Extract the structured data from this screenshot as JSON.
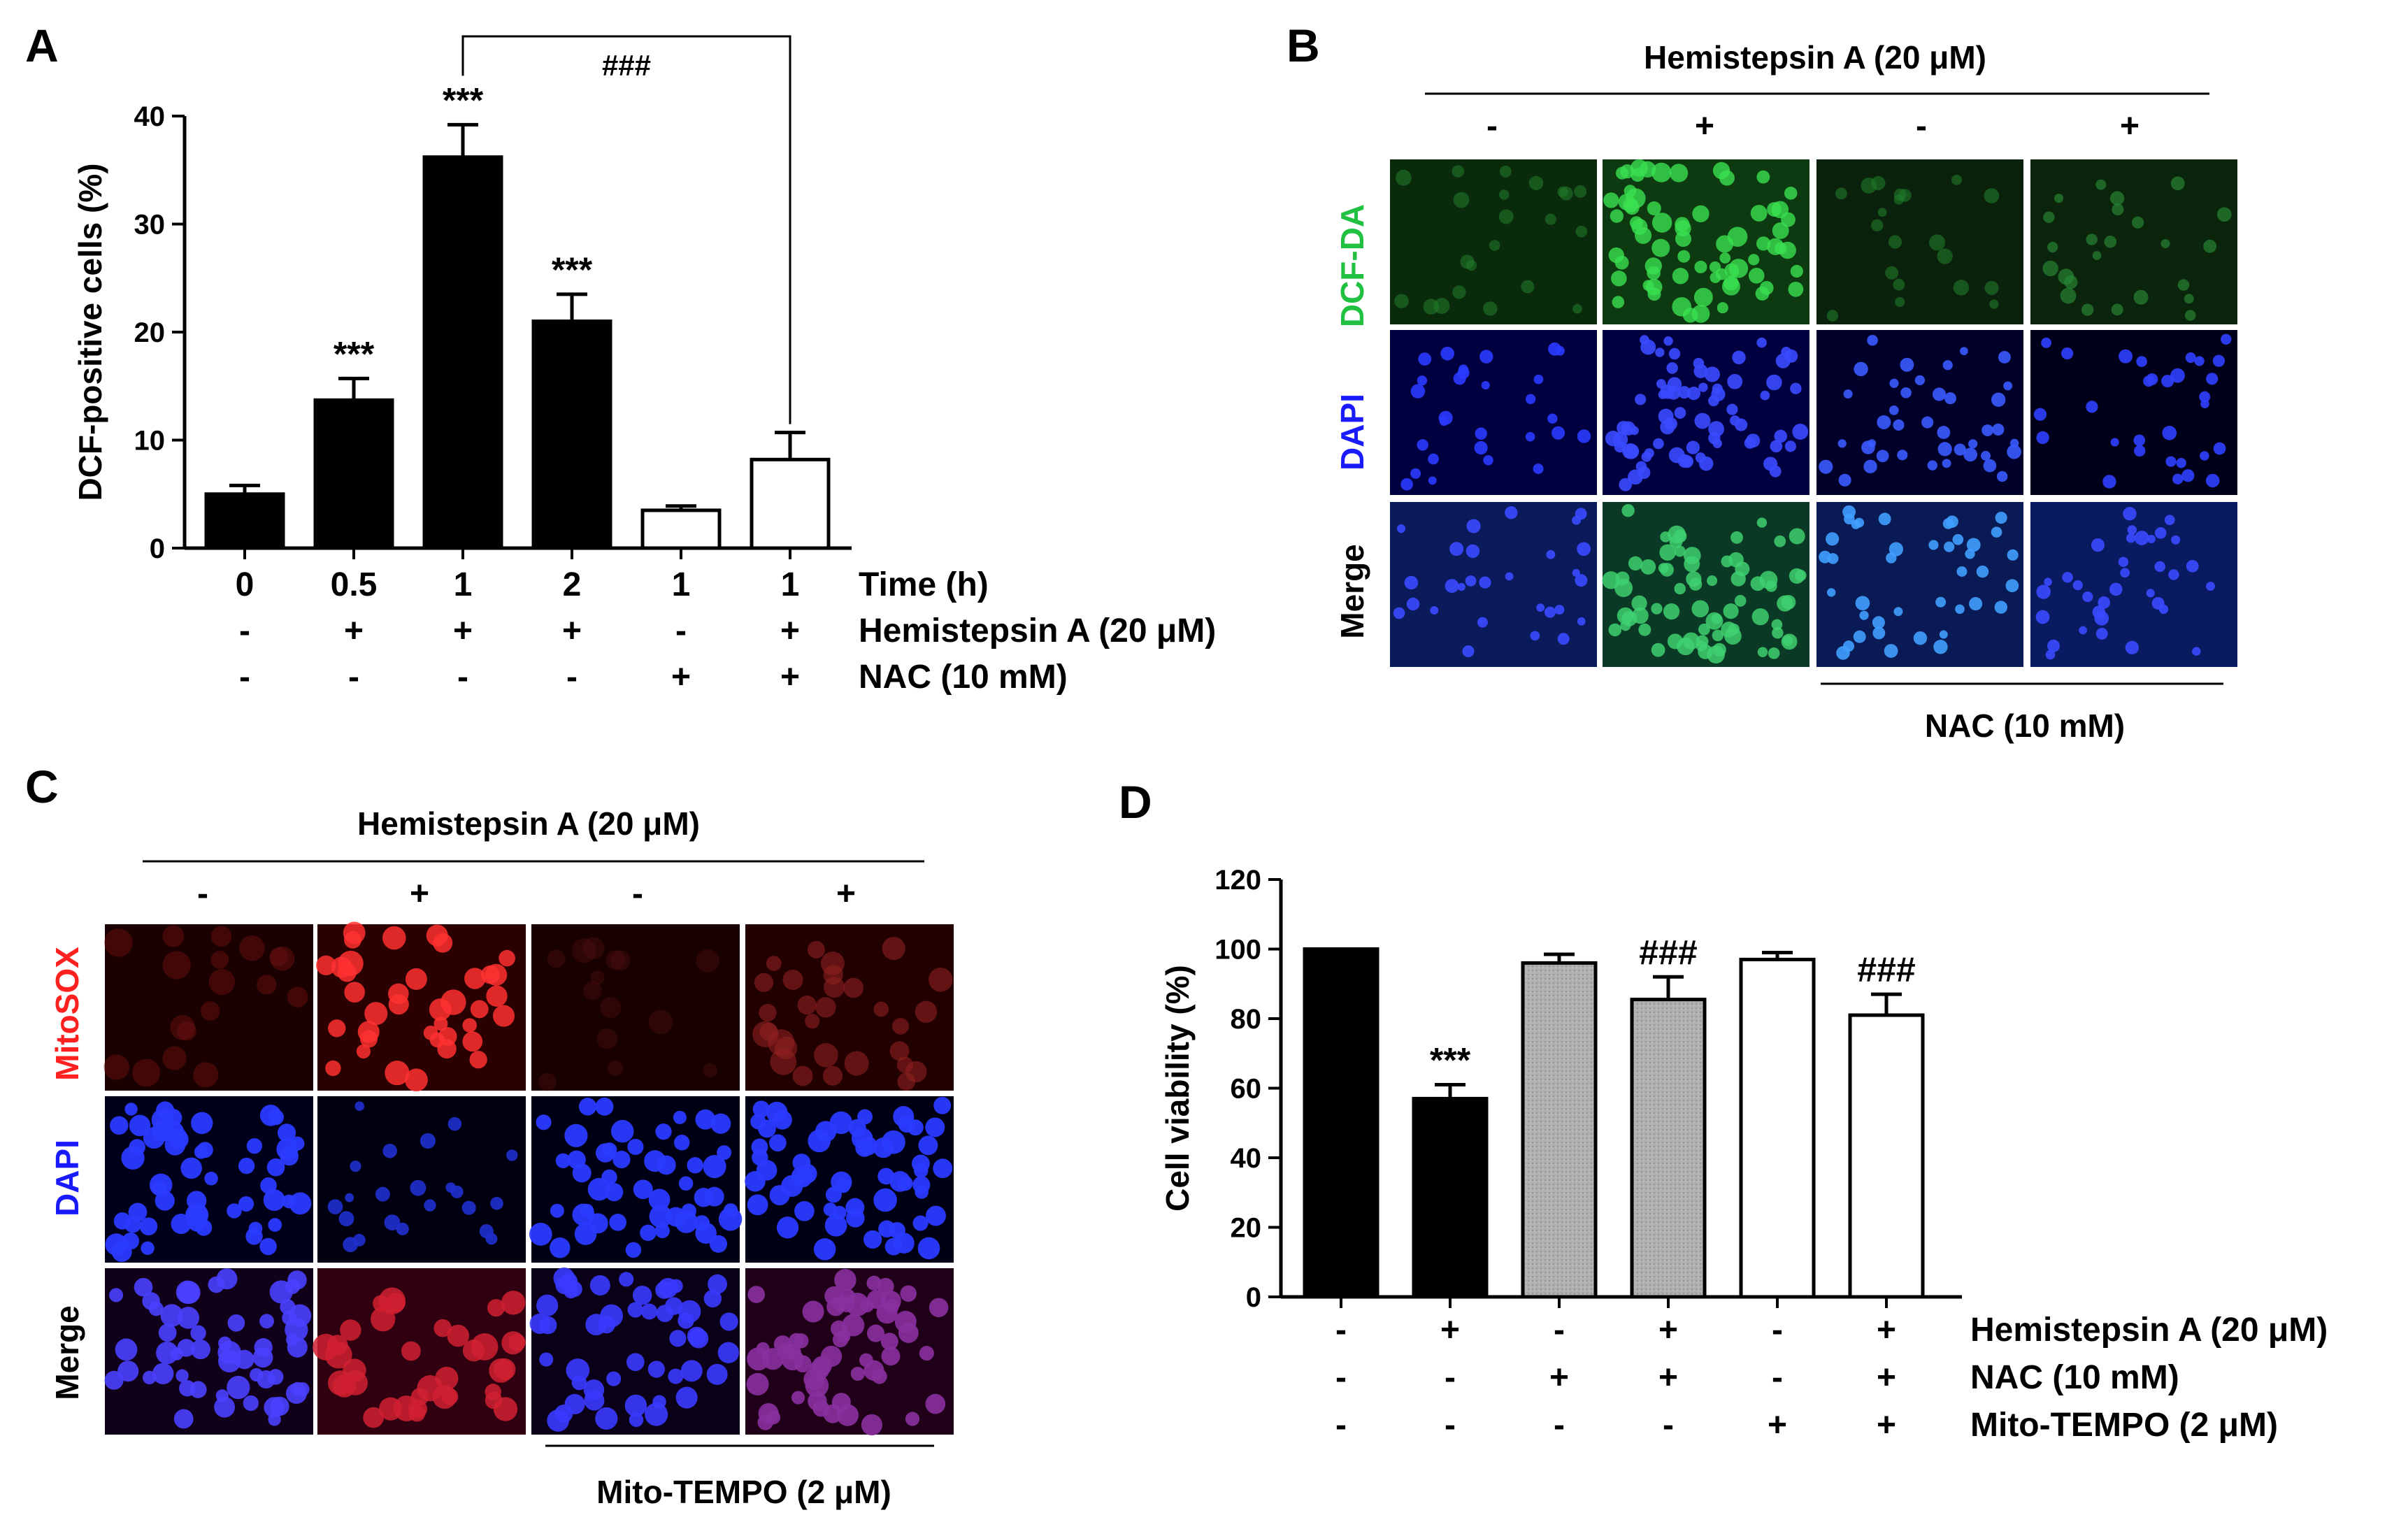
{
  "figure": {
    "panels": {
      "a": "A",
      "b": "B",
      "c": "C",
      "d": "D"
    },
    "colors": {
      "black_bar": "#000000",
      "gray_bar": "#a9a9a9",
      "white_bar": "#ffffff",
      "dcf_green": "#20c040",
      "dapi_blue": "#1a1aff",
      "mitosox_red": "#ff2020"
    }
  },
  "chart_data": [
    {
      "panel": "A",
      "type": "bar",
      "ylabel": "DCF-positive cells (%)",
      "ylim": [
        0,
        40
      ],
      "yticks": [
        "0",
        "10",
        "20",
        "30",
        "40"
      ],
      "bars": [
        {
          "value": 5.0,
          "err": 0.8,
          "fill": "black",
          "sig": ""
        },
        {
          "value": 13.7,
          "err": 2.0,
          "fill": "black",
          "sig": "***"
        },
        {
          "value": 36.2,
          "err": 3.0,
          "fill": "black",
          "sig": "***"
        },
        {
          "value": 21.0,
          "err": 2.5,
          "fill": "black",
          "sig": "***"
        },
        {
          "value": 3.5,
          "err": 0.4,
          "fill": "white",
          "sig": ""
        },
        {
          "value": 8.2,
          "err": 2.5,
          "fill": "white",
          "sig": ""
        }
      ],
      "bracket": {
        "from": 2,
        "to": 5,
        "label": "###"
      },
      "rows": [
        {
          "label": "Time (h)",
          "values": [
            "0",
            "0.5",
            "1",
            "2",
            "1",
            "1"
          ]
        },
        {
          "label": "Hemistepsin A (20 μM)",
          "values": [
            "-",
            "+",
            "+",
            "+",
            "-",
            "+"
          ]
        },
        {
          "label": "NAC (10 mM)",
          "values": [
            "-",
            "-",
            "-",
            "-",
            "+",
            "+"
          ]
        }
      ]
    },
    {
      "panel": "D",
      "type": "bar",
      "ylabel": "Cell viability (%)",
      "ylim": [
        0,
        120
      ],
      "yticks": [
        "0",
        "20",
        "40",
        "60",
        "80",
        "100",
        "120"
      ],
      "bars": [
        {
          "value": 100,
          "err": 0,
          "fill": "black",
          "sig": ""
        },
        {
          "value": 57,
          "err": 4,
          "fill": "black",
          "sig": "***"
        },
        {
          "value": 96,
          "err": 2.5,
          "fill": "gray",
          "sig": ""
        },
        {
          "value": 85.5,
          "err": 6.5,
          "fill": "gray",
          "sig": "###"
        },
        {
          "value": 97,
          "err": 2,
          "fill": "white",
          "sig": ""
        },
        {
          "value": 81,
          "err": 6,
          "fill": "white",
          "sig": "###"
        }
      ],
      "rows": [
        {
          "label": "Hemistepsin A (20 μM)",
          "values": [
            "-",
            "+",
            "-",
            "+",
            "-",
            "+"
          ]
        },
        {
          "label": "NAC (10 mM)",
          "values": [
            "-",
            "-",
            "+",
            "+",
            "-",
            "+"
          ]
        },
        {
          "label": "Mito-TEMPO (2 μM)",
          "values": [
            "-",
            "-",
            "-",
            "-",
            "+",
            "+"
          ]
        }
      ]
    }
  ],
  "panel_b": {
    "top_label": "Hemistepsin A (20 μM)",
    "signs": [
      "-",
      "+",
      "-",
      "+"
    ],
    "row_labels": [
      "DCF-DA",
      "DAPI",
      "Merge"
    ],
    "bottom_label": "NAC (10 mM)"
  },
  "panel_c": {
    "top_label": "Hemistepsin A (20 μM)",
    "signs": [
      "-",
      "+",
      "-",
      "+"
    ],
    "row_labels": [
      "MitoSOX",
      "DAPI",
      "Merge"
    ],
    "bottom_label": "Mito-TEMPO (2 μM)"
  }
}
